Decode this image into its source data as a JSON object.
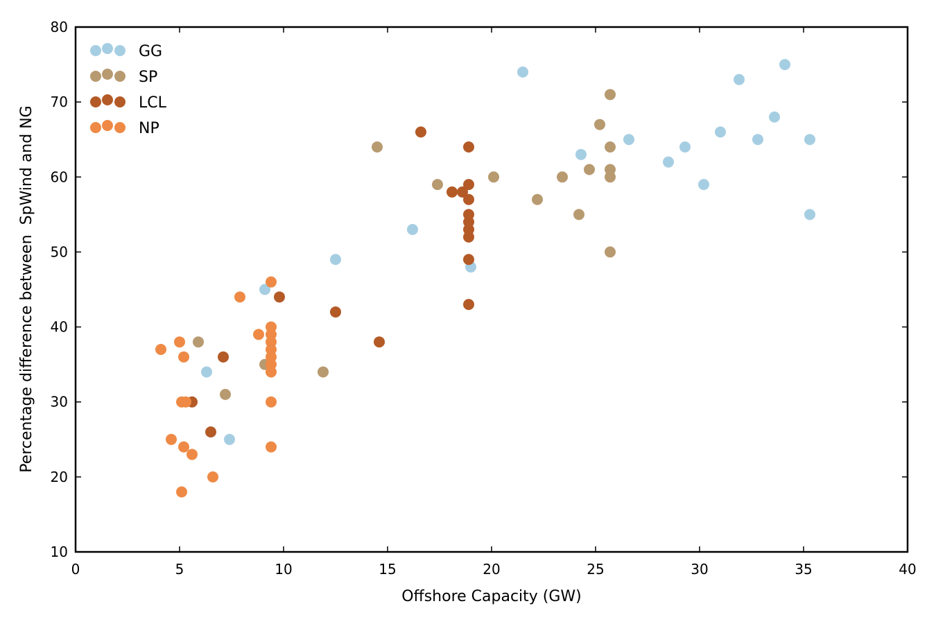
{
  "chart_data": {
    "type": "scatter",
    "title": "",
    "xlabel": "Offshore Capacity (GW)",
    "ylabel": "Percentage difference between  SpWind and NG",
    "xlim": [
      0,
      40
    ],
    "ylim": [
      10,
      80
    ],
    "xticks": [
      0,
      5,
      10,
      15,
      20,
      25,
      30,
      35,
      40
    ],
    "yticks": [
      10,
      20,
      30,
      40,
      50,
      60,
      70,
      80
    ],
    "legend_position": "top-left",
    "series": [
      {
        "name": "GG",
        "color": "#a6cee3",
        "points": [
          [
            21.5,
            74
          ],
          [
            34.1,
            75
          ],
          [
            31.9,
            73
          ],
          [
            33.6,
            68
          ],
          [
            31,
            66
          ],
          [
            32.8,
            65
          ],
          [
            35.3,
            65
          ],
          [
            26.6,
            65
          ],
          [
            29.3,
            64
          ],
          [
            24.3,
            63
          ],
          [
            28.5,
            62
          ],
          [
            30.2,
            59
          ],
          [
            35.3,
            55
          ],
          [
            16.2,
            53
          ],
          [
            12.5,
            49
          ],
          [
            19,
            48
          ],
          [
            9.1,
            45
          ],
          [
            6.3,
            34
          ],
          [
            7.4,
            25
          ]
        ]
      },
      {
        "name": "SP",
        "color": "#b89a70",
        "points": [
          [
            25.7,
            71
          ],
          [
            25.2,
            67
          ],
          [
            14.5,
            64
          ],
          [
            25.7,
            64
          ],
          [
            25.7,
            61
          ],
          [
            24.7,
            61
          ],
          [
            20.1,
            60
          ],
          [
            23.4,
            60
          ],
          [
            25.7,
            60
          ],
          [
            17.4,
            59
          ],
          [
            22.2,
            57
          ],
          [
            24.2,
            55
          ],
          [
            25.7,
            50
          ],
          [
            5.9,
            38
          ],
          [
            9.1,
            35
          ],
          [
            11.9,
            34
          ],
          [
            7.2,
            31
          ]
        ]
      },
      {
        "name": "LCL",
        "color": "#b45a27",
        "points": [
          [
            16.6,
            66
          ],
          [
            18.9,
            64
          ],
          [
            18.9,
            59
          ],
          [
            18.1,
            58
          ],
          [
            18.6,
            58
          ],
          [
            18.9,
            57
          ],
          [
            18.9,
            55
          ],
          [
            18.9,
            54
          ],
          [
            18.9,
            53
          ],
          [
            18.9,
            52
          ],
          [
            18.9,
            49
          ],
          [
            18.9,
            43
          ],
          [
            9.8,
            44
          ],
          [
            12.5,
            42
          ],
          [
            14.6,
            38
          ],
          [
            7.1,
            36
          ],
          [
            5.6,
            30
          ],
          [
            6.5,
            26
          ]
        ]
      },
      {
        "name": "NP",
        "color": "#ee8a45",
        "points": [
          [
            9.4,
            46
          ],
          [
            7.9,
            44
          ],
          [
            9.4,
            40
          ],
          [
            9.4,
            39
          ],
          [
            8.8,
            39
          ],
          [
            9.4,
            38
          ],
          [
            9.4,
            37
          ],
          [
            9.4,
            36
          ],
          [
            9.4,
            35
          ],
          [
            9.4,
            34
          ],
          [
            4.1,
            37
          ],
          [
            5,
            38
          ],
          [
            5.2,
            36
          ],
          [
            5.1,
            30
          ],
          [
            5.3,
            30
          ],
          [
            9.4,
            30
          ],
          [
            4.6,
            25
          ],
          [
            5.2,
            24
          ],
          [
            9.4,
            24
          ],
          [
            5.6,
            23
          ],
          [
            6.6,
            20
          ],
          [
            5.1,
            18
          ]
        ]
      }
    ]
  }
}
